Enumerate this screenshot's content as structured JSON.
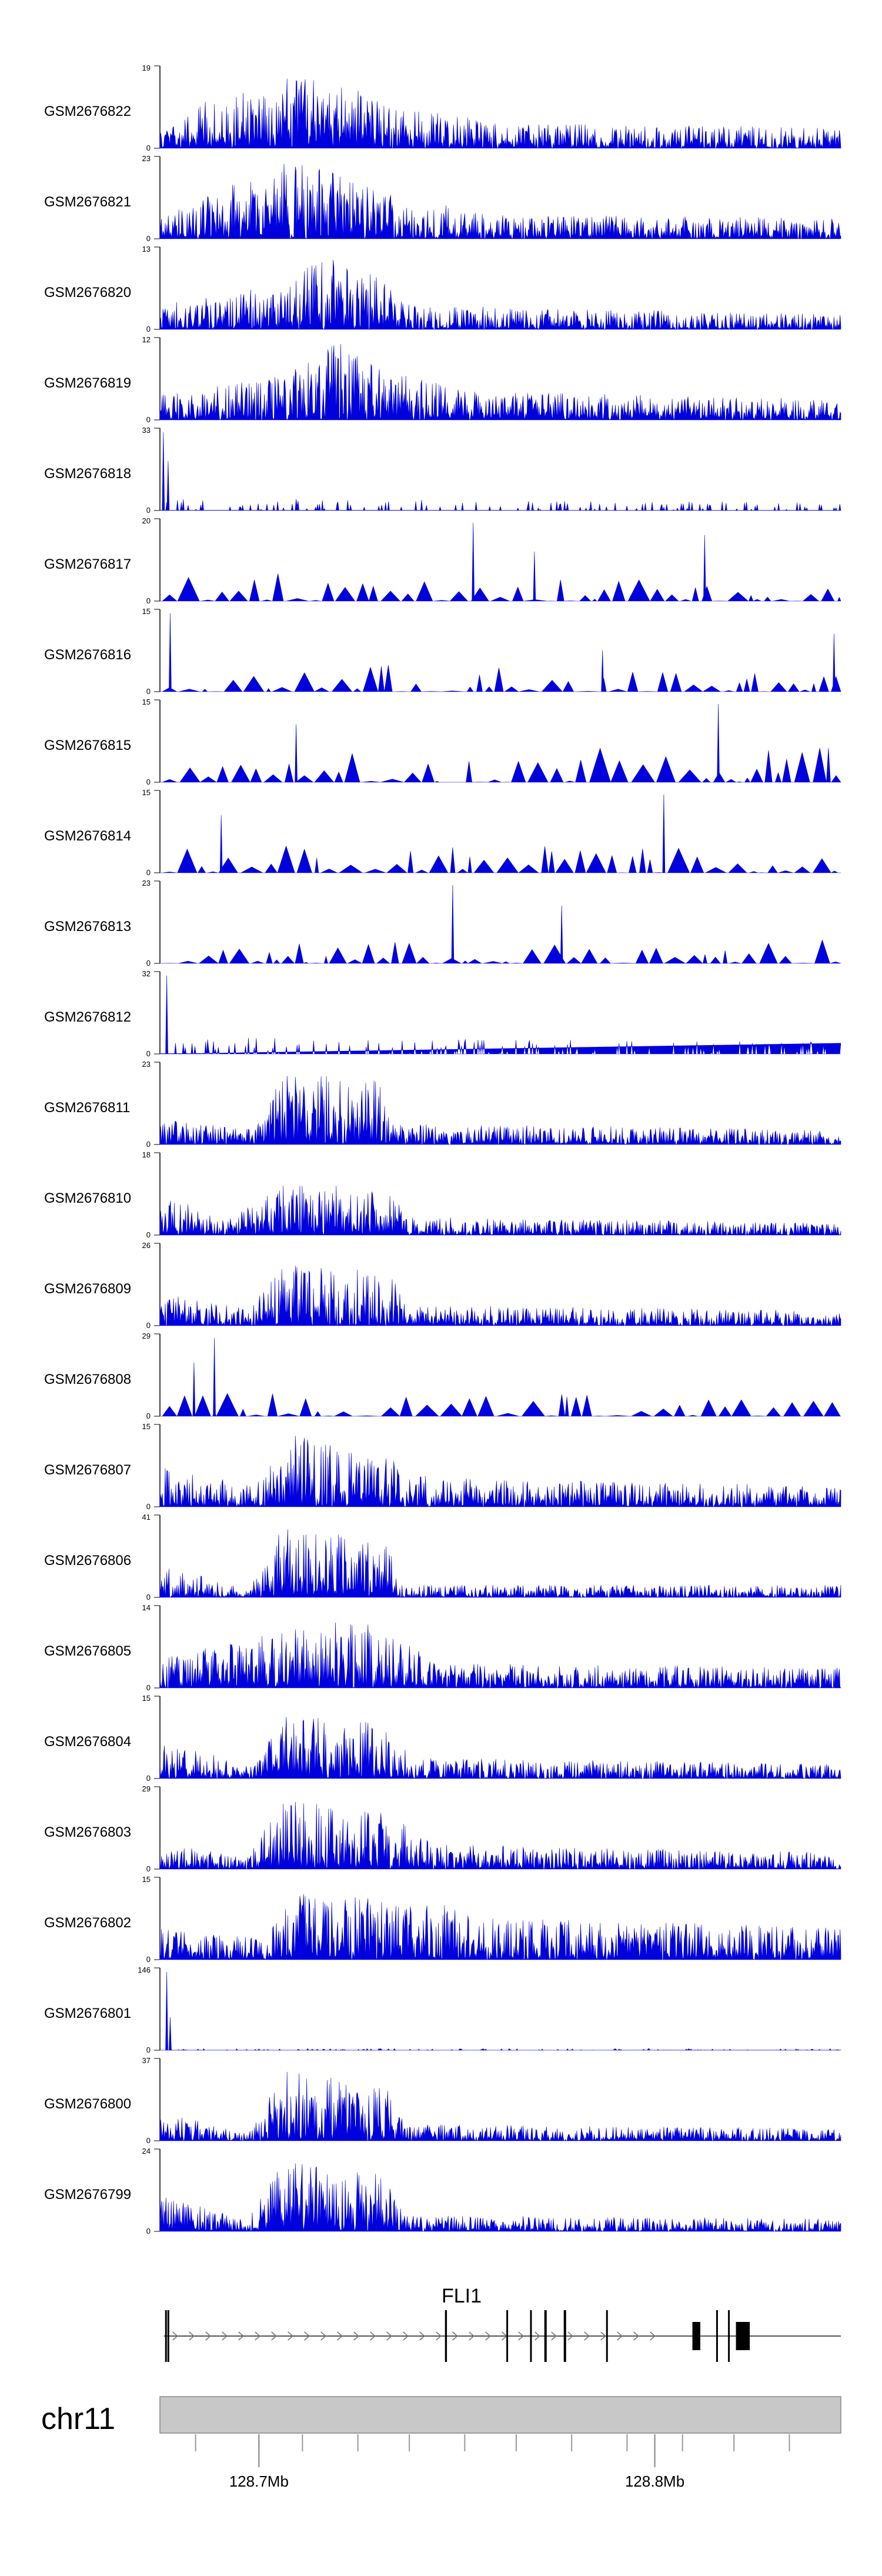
{
  "chart_data": {
    "type": "area",
    "title": "",
    "colors": {
      "signal": "#0000dd",
      "ideogram": "#c8c8c8",
      "axis": "#999999"
    },
    "x_range_mb": [
      128.675,
      128.847
    ],
    "tracks": [
      {
        "name": "GSM2676822",
        "ymax": "19",
        "ymin": "0",
        "max": 19,
        "seed": 822,
        "style": "dense",
        "profile": [
          [
            0.0,
            0.25
          ],
          [
            0.04,
            0.5
          ],
          [
            0.2,
            0.9
          ],
          [
            0.27,
            0.85
          ],
          [
            0.33,
            0.55
          ],
          [
            0.5,
            0.3
          ],
          [
            1.0,
            0.25
          ]
        ]
      },
      {
        "name": "GSM2676821",
        "ymax": "23",
        "ymin": "0",
        "max": 23,
        "seed": 821,
        "style": "dense",
        "profile": [
          [
            0.0,
            0.25
          ],
          [
            0.18,
            0.95
          ],
          [
            0.27,
            0.8
          ],
          [
            0.35,
            0.5
          ],
          [
            0.5,
            0.3
          ],
          [
            1.0,
            0.25
          ]
        ]
      },
      {
        "name": "GSM2676820",
        "ymax": "13",
        "ymin": "0",
        "max": 13,
        "seed": 820,
        "style": "dense",
        "profile": [
          [
            0.0,
            0.3
          ],
          [
            0.18,
            0.55
          ],
          [
            0.25,
            0.95
          ],
          [
            0.33,
            0.6
          ],
          [
            0.37,
            0.3
          ],
          [
            1.0,
            0.18
          ]
        ]
      },
      {
        "name": "GSM2676819",
        "ymax": "12",
        "ymin": "0",
        "max": 12,
        "seed": 819,
        "style": "dense",
        "profile": [
          [
            0.0,
            0.3
          ],
          [
            0.18,
            0.55
          ],
          [
            0.26,
            0.95
          ],
          [
            0.34,
            0.6
          ],
          [
            0.45,
            0.35
          ],
          [
            1.0,
            0.25
          ]
        ]
      },
      {
        "name": "GSM2676818",
        "ymax": "33",
        "ymin": "0",
        "max": 33,
        "seed": 818,
        "style": "sparse",
        "spikes": [
          [
            0.005,
            0.95
          ],
          [
            0.012,
            0.6
          ]
        ],
        "profile": [
          [
            0.0,
            0.15
          ],
          [
            1.0,
            0.1
          ]
        ]
      },
      {
        "name": "GSM2676817",
        "ymax": "20",
        "ymin": "0",
        "max": 20,
        "seed": 817,
        "style": "triangle",
        "spikes": [
          [
            0.46,
            0.95
          ],
          [
            0.8,
            0.8
          ],
          [
            0.55,
            0.6
          ]
        ],
        "profile": [
          [
            0.0,
            0.35
          ],
          [
            1.0,
            0.3
          ]
        ]
      },
      {
        "name": "GSM2676816",
        "ymax": "15",
        "ymin": "0",
        "max": 15,
        "seed": 816,
        "style": "triangle",
        "spikes": [
          [
            0.015,
            0.95
          ],
          [
            0.99,
            0.7
          ],
          [
            0.65,
            0.5
          ]
        ],
        "profile": [
          [
            0.0,
            0.35
          ],
          [
            1.0,
            0.3
          ]
        ]
      },
      {
        "name": "GSM2676815",
        "ymax": "15",
        "ymin": "0",
        "max": 15,
        "seed": 815,
        "style": "triangle",
        "spikes": [
          [
            0.82,
            0.95
          ],
          [
            0.2,
            0.7
          ]
        ],
        "profile": [
          [
            0.0,
            0.45
          ],
          [
            1.0,
            0.45
          ]
        ]
      },
      {
        "name": "GSM2676814",
        "ymax": "15",
        "ymin": "0",
        "max": 15,
        "seed": 814,
        "style": "triangle",
        "spikes": [
          [
            0.74,
            0.95
          ],
          [
            0.09,
            0.7
          ]
        ],
        "profile": [
          [
            0.0,
            0.35
          ],
          [
            1.0,
            0.3
          ]
        ]
      },
      {
        "name": "GSM2676813",
        "ymax": "23",
        "ymin": "0",
        "max": 23,
        "seed": 813,
        "style": "triangle",
        "spikes": [
          [
            0.43,
            0.95
          ],
          [
            0.59,
            0.7
          ]
        ],
        "profile": [
          [
            0.0,
            0.3
          ],
          [
            1.0,
            0.3
          ]
        ]
      },
      {
        "name": "GSM2676812",
        "ymax": "32",
        "ymin": "0",
        "max": 32,
        "seed": 812,
        "style": "sparse",
        "spikes": [
          [
            0.01,
            0.95
          ]
        ],
        "profile": [
          [
            0.0,
            0.2
          ],
          [
            1.0,
            0.15
          ]
        ]
      },
      {
        "name": "GSM2676811",
        "ymax": "23",
        "ymin": "0",
        "max": 23,
        "seed": 811,
        "style": "dense",
        "profile": [
          [
            0.0,
            0.3
          ],
          [
            0.14,
            0.2
          ],
          [
            0.18,
            0.85
          ],
          [
            0.32,
            0.8
          ],
          [
            0.35,
            0.25
          ],
          [
            1.0,
            0.18
          ]
        ]
      },
      {
        "name": "GSM2676810",
        "ymax": "18",
        "ymin": "0",
        "max": 18,
        "seed": 810,
        "style": "dense",
        "profile": [
          [
            0.0,
            0.5
          ],
          [
            0.1,
            0.2
          ],
          [
            0.18,
            0.6
          ],
          [
            0.33,
            0.6
          ],
          [
            0.37,
            0.22
          ],
          [
            1.0,
            0.15
          ]
        ]
      },
      {
        "name": "GSM2676809",
        "ymax": "26",
        "ymin": "0",
        "max": 26,
        "seed": 809,
        "style": "dense",
        "profile": [
          [
            0.0,
            0.4
          ],
          [
            0.13,
            0.2
          ],
          [
            0.18,
            0.75
          ],
          [
            0.33,
            0.7
          ],
          [
            0.37,
            0.25
          ],
          [
            1.0,
            0.18
          ]
        ]
      },
      {
        "name": "GSM2676808",
        "ymax": "29",
        "ymin": "0",
        "max": 29,
        "seed": 808,
        "style": "triangle",
        "spikes": [
          [
            0.08,
            0.95
          ],
          [
            0.05,
            0.65
          ]
        ],
        "profile": [
          [
            0.0,
            0.3
          ],
          [
            1.0,
            0.28
          ]
        ]
      },
      {
        "name": "GSM2676807",
        "ymax": "15",
        "ymin": "0",
        "max": 15,
        "seed": 807,
        "style": "dense",
        "profile": [
          [
            0.0,
            0.5
          ],
          [
            0.14,
            0.25
          ],
          [
            0.19,
            0.9
          ],
          [
            0.33,
            0.6
          ],
          [
            0.4,
            0.35
          ],
          [
            1.0,
            0.25
          ]
        ]
      },
      {
        "name": "GSM2676806",
        "ymax": "41",
        "ymin": "0",
        "max": 41,
        "seed": 806,
        "style": "dense",
        "profile": [
          [
            0.0,
            0.4
          ],
          [
            0.13,
            0.1
          ],
          [
            0.18,
            0.85
          ],
          [
            0.33,
            0.7
          ],
          [
            0.36,
            0.15
          ],
          [
            1.0,
            0.15
          ]
        ]
      },
      {
        "name": "GSM2676805",
        "ymax": "14",
        "ymin": "0",
        "max": 14,
        "seed": 805,
        "style": "dense",
        "profile": [
          [
            0.0,
            0.35
          ],
          [
            0.18,
            0.7
          ],
          [
            0.3,
            0.85
          ],
          [
            0.37,
            0.5
          ],
          [
            0.45,
            0.3
          ],
          [
            1.0,
            0.25
          ]
        ]
      },
      {
        "name": "GSM2676804",
        "ymax": "15",
        "ymin": "0",
        "max": 15,
        "seed": 804,
        "style": "dense",
        "profile": [
          [
            0.0,
            0.5
          ],
          [
            0.13,
            0.15
          ],
          [
            0.18,
            0.75
          ],
          [
            0.33,
            0.7
          ],
          [
            0.37,
            0.25
          ],
          [
            1.0,
            0.18
          ]
        ]
      },
      {
        "name": "GSM2676803",
        "ymax": "29",
        "ymin": "0",
        "max": 29,
        "seed": 803,
        "style": "dense",
        "profile": [
          [
            0.0,
            0.35
          ],
          [
            0.13,
            0.15
          ],
          [
            0.18,
            0.85
          ],
          [
            0.35,
            0.65
          ],
          [
            0.4,
            0.3
          ],
          [
            1.0,
            0.2
          ]
        ]
      },
      {
        "name": "GSM2676802",
        "ymax": "15",
        "ymin": "0",
        "max": 15,
        "seed": 802,
        "style": "dense",
        "profile": [
          [
            0.0,
            0.4
          ],
          [
            0.15,
            0.25
          ],
          [
            0.2,
            0.8
          ],
          [
            0.4,
            0.7
          ],
          [
            0.5,
            0.5
          ],
          [
            1.0,
            0.4
          ]
        ]
      },
      {
        "name": "GSM2676801",
        "ymax": "146",
        "ymin": "0",
        "max": 146,
        "seed": 801,
        "style": "sparse",
        "spikes": [
          [
            0.01,
            0.95
          ],
          [
            0.015,
            0.4
          ]
        ],
        "profile": [
          [
            0.0,
            0.02
          ],
          [
            1.0,
            0.02
          ]
        ]
      },
      {
        "name": "GSM2676800",
        "ymax": "37",
        "ymin": "0",
        "max": 37,
        "seed": 800,
        "style": "dense",
        "profile": [
          [
            0.0,
            0.35
          ],
          [
            0.13,
            0.1
          ],
          [
            0.18,
            0.85
          ],
          [
            0.33,
            0.7
          ],
          [
            0.36,
            0.2
          ],
          [
            1.0,
            0.15
          ]
        ]
      },
      {
        "name": "GSM2676799",
        "ymax": "24",
        "ymin": "0",
        "max": 24,
        "seed": 799,
        "style": "dense",
        "profile": [
          [
            0.0,
            0.45
          ],
          [
            0.13,
            0.15
          ],
          [
            0.18,
            0.85
          ],
          [
            0.33,
            0.7
          ],
          [
            0.36,
            0.2
          ],
          [
            1.0,
            0.15
          ]
        ]
      }
    ],
    "gene": {
      "name": "FLI1",
      "start_mb": 128.676,
      "end_mb": 128.847,
      "strand": "+",
      "exons_mb": [
        [
          128.6763,
          128.6767
        ],
        [
          128.6769,
          128.6773
        ],
        [
          128.747,
          128.7475
        ],
        [
          128.7625,
          128.7629
        ],
        [
          128.7685,
          128.7689
        ],
        [
          128.7721,
          128.7727
        ],
        [
          128.777,
          128.7776
        ],
        [
          128.7877,
          128.7879
        ],
        [
          128.8095,
          128.8115
        ],
        [
          128.8155,
          128.8159
        ],
        [
          128.8185,
          128.8188
        ],
        [
          128.8205,
          128.824
        ]
      ]
    },
    "chromosome": {
      "name": "chr11",
      "ticks_mb": [
        128.684,
        128.7,
        128.711,
        128.725,
        128.738,
        128.752,
        128.765,
        128.779,
        128.793,
        128.807,
        128.82,
        128.834
      ],
      "labels": [
        {
          "mb": 128.7,
          "text": "128.7Mb"
        },
        {
          "mb": 128.8,
          "text": "128.8Mb"
        }
      ]
    }
  }
}
